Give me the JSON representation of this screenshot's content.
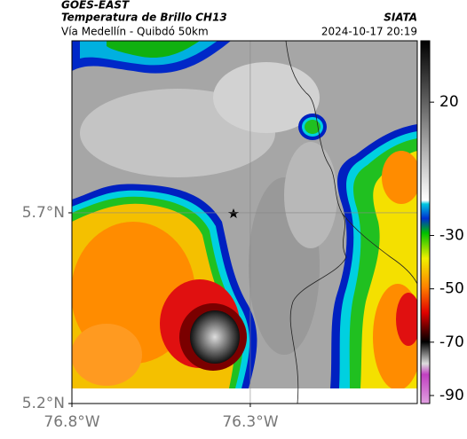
{
  "header": {
    "satellite": "GOES-EAST",
    "product": "Temperatura de Brillo CH13",
    "route": "Vía Medellín - Quibdó 50km",
    "source": "SIATA",
    "timestamp": "2024-10-17 20:19"
  },
  "map": {
    "xlim": [
      -76.8,
      -75.832
    ],
    "ylim": [
      5.2,
      6.151
    ],
    "xticks": [
      {
        "value": -76.8,
        "label": "76.8°W"
      },
      {
        "value": -76.3,
        "label": "76.3°W"
      }
    ],
    "yticks": [
      {
        "value": 5.2,
        "label": "5.2°N"
      },
      {
        "value": 5.7,
        "label": "5.7°N"
      }
    ]
  },
  "colorbar": {
    "lim": [
      -93,
      43
    ],
    "ticks": [
      20,
      -30,
      -50,
      -70,
      -90
    ]
  }
}
